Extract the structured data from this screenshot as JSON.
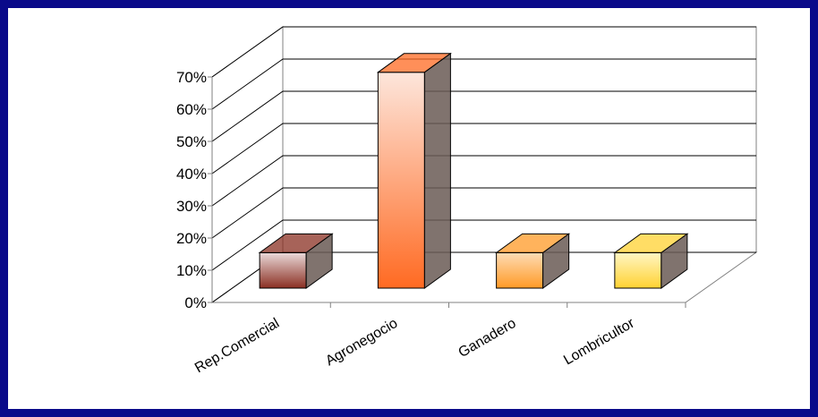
{
  "chart_data": {
    "type": "bar",
    "title": "",
    "xlabel": "",
    "ylabel": "",
    "categories": [
      "Rep.Comercial",
      "Agronegocio",
      "Ganadero",
      "Lombricultor"
    ],
    "values": [
      11,
      67,
      11,
      11
    ],
    "value_unit": "%",
    "ylim": [
      0,
      70
    ],
    "yticks": [
      "0%",
      "10%",
      "20%",
      "30%",
      "40%",
      "50%",
      "60%",
      "70%"
    ],
    "grid": true,
    "legend": "none",
    "style": "3d-column",
    "colors": {
      "Rep.Comercial": {
        "light": "#eadada",
        "dark": "#8a2f22"
      },
      "Agronegocio": {
        "light": "#fde6dc",
        "dark": "#ff6a22"
      },
      "Ganadero": {
        "light": "#fddcb5",
        "dark": "#ff9a26"
      },
      "Lombricultor": {
        "light": "#fff6c4",
        "dark": "#ffd232"
      }
    },
    "frame_color": "#0a0a8a"
  }
}
